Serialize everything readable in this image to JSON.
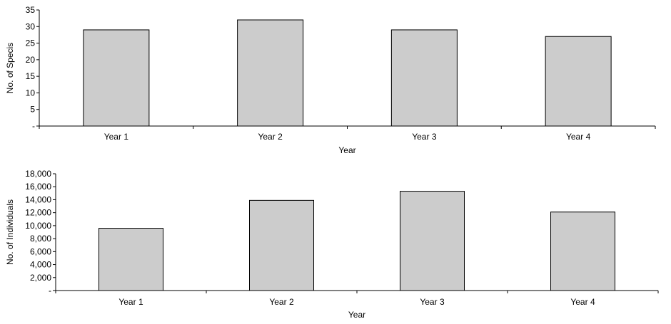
{
  "chart_data": [
    {
      "type": "bar",
      "categories": [
        "Year 1",
        "Year 2",
        "Year 3",
        "Year 4"
      ],
      "values": [
        29,
        32,
        29,
        27
      ],
      "ylim": [
        0,
        35
      ],
      "yticks": [
        0,
        5,
        10,
        15,
        20,
        25,
        30,
        35
      ],
      "ytick_labels": [
        "-",
        "5",
        "10",
        "15",
        "20",
        "25",
        "30",
        "35"
      ],
      "xlabel": "Year",
      "ylabel": "No. of Specis",
      "bar_color": "#cccccc",
      "grid": false
    },
    {
      "type": "bar",
      "categories": [
        "Year 1",
        "Year 2",
        "Year 3",
        "Year 4"
      ],
      "values": [
        9600,
        13900,
        15300,
        12100
      ],
      "ylim": [
        0,
        18000
      ],
      "yticks": [
        0,
        2000,
        4000,
        6000,
        8000,
        10000,
        12000,
        14000,
        16000,
        18000
      ],
      "ytick_labels": [
        "-",
        "2,000",
        "4,000",
        "6,000",
        "8,000",
        "10,000",
        "12,000",
        "14,000",
        "16,000",
        "18,000"
      ],
      "xlabel": "Year",
      "ylabel": "No. of Individuals",
      "bar_color": "#cccccc",
      "grid": false
    }
  ]
}
